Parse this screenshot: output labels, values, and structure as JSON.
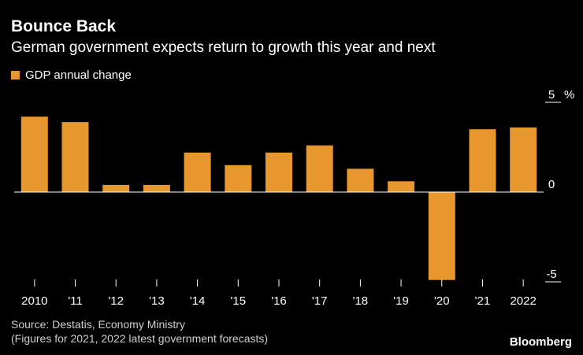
{
  "title": "Bounce Back",
  "subtitle": "German government expects return to growth this year and next",
  "legend": {
    "label": "GDP annual change"
  },
  "source": {
    "line1": "Source: Destatis, Economy Ministry",
    "line2": "(Figures for 2021, 2022 latest government forecasts)"
  },
  "logo": "Bloomberg",
  "colors": {
    "bar": "#E8962E",
    "background": "#000000",
    "axis": "#ffffff",
    "text": "#ffffff"
  },
  "chart_data": {
    "type": "bar",
    "categories": [
      "2010",
      "'11",
      "'12",
      "'13",
      "'14",
      "'15",
      "'16",
      "'17",
      "'18",
      "'19",
      "'20",
      "'21",
      "2022"
    ],
    "values": [
      4.2,
      3.9,
      0.4,
      0.4,
      2.2,
      1.5,
      2.2,
      2.6,
      1.3,
      0.6,
      -4.9,
      3.5,
      3.6
    ],
    "series_name": "GDP annual change",
    "ylim": [
      -5,
      5
    ],
    "yticks": [
      5,
      0,
      -5
    ],
    "ytick_labels": [
      "5",
      "0",
      "-5"
    ],
    "yunit": "%",
    "xlabel": "",
    "ylabel": ""
  }
}
